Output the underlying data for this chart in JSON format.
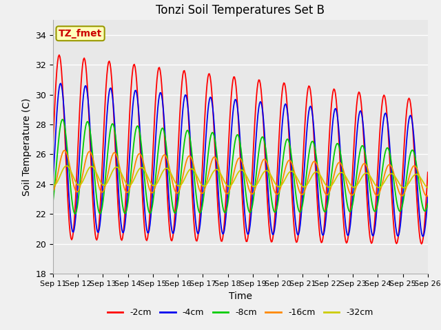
{
  "title": "Tonzi Soil Temperatures Set B",
  "xlabel": "Time",
  "ylabel": "Soil Temperature (C)",
  "ylim": [
    18,
    35
  ],
  "yticks": [
    18,
    20,
    22,
    24,
    26,
    28,
    30,
    32,
    34
  ],
  "x_labels": [
    "Sep 11",
    "Sep 12",
    "Sep 13",
    "Sep 14",
    "Sep 15",
    "Sep 16",
    "Sep 17",
    "Sep 18",
    "Sep 19",
    "Sep 20",
    "Sep 21",
    "Sep 22",
    "Sep 23",
    "Sep 24",
    "Sep 25",
    "Sep 26"
  ],
  "series_colors": [
    "#ff0000",
    "#0000ee",
    "#00cc00",
    "#ff8800",
    "#cccc00"
  ],
  "series_labels": [
    "-2cm",
    "-4cm",
    "-8cm",
    "-16cm",
    "-32cm"
  ],
  "annotation_text": "TZ_fmet",
  "annotation_color": "#cc0000",
  "annotation_bg": "#ffffbb",
  "annotation_edge": "#999900",
  "plot_bg": "#e8e8e8",
  "fig_bg": "#f0f0f0",
  "grid_color": "#ffffff",
  "n_points": 480
}
